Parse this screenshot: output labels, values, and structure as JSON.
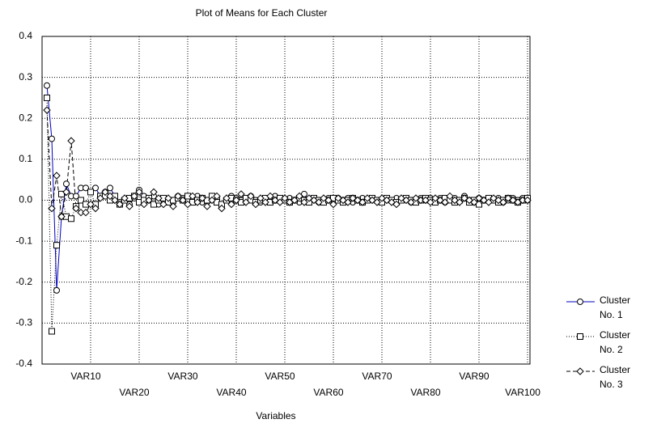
{
  "chart_data": {
    "type": "line",
    "title": "Plot of Means for Each Cluster",
    "x_label": "Variables",
    "categories": [
      null,
      null,
      null,
      null,
      null,
      null,
      null,
      null,
      null,
      "VAR10",
      null,
      null,
      null,
      null,
      null,
      null,
      null,
      null,
      null,
      "VAR20",
      null,
      null,
      null,
      null,
      null,
      null,
      null,
      null,
      null,
      "VAR30",
      null,
      null,
      null,
      null,
      null,
      null,
      null,
      null,
      null,
      "VAR40",
      null,
      null,
      null,
      null,
      null,
      null,
      null,
      null,
      null,
      "VAR50",
      null,
      null,
      null,
      null,
      null,
      null,
      null,
      null,
      null,
      "VAR60",
      null,
      null,
      null,
      null,
      null,
      null,
      null,
      null,
      null,
      "VAR70",
      null,
      null,
      null,
      null,
      null,
      null,
      null,
      null,
      null,
      "VAR80",
      null,
      null,
      null,
      null,
      null,
      null,
      null,
      null,
      null,
      "VAR90",
      null,
      null,
      null,
      null,
      null,
      null,
      null,
      null,
      null,
      "VAR100"
    ],
    "series": [
      {
        "name": "Cluster No. 1",
        "color": "#0000c0",
        "marker": "circle",
        "dash": "solid",
        "values": [
          0.28,
          0.15,
          -0.22,
          -0.04,
          0.04,
          0.01,
          0.01,
          0.03,
          0.03,
          0.02,
          0.03,
          0.01,
          0.02,
          0.03,
          0.01,
          -0.005,
          0.0,
          -0.01,
          0.005,
          0.025,
          0.01,
          0.0,
          0.01,
          -0.01,
          0.005,
          0.0,
          -0.005,
          0.01,
          0.005,
          0.0,
          0.005,
          0.01,
          -0.005,
          0.0,
          0.005,
          0.005,
          -0.01,
          0.0,
          0.01,
          0.005,
          0.0,
          0.005,
          0.01,
          0.0,
          -0.005,
          0.005,
          0.0,
          0.01,
          0.005,
          0.0,
          0.005,
          0.0,
          -0.005,
          0.015,
          0.0,
          0.005,
          -0.005,
          0.0,
          0.005,
          0.0,
          0.005,
          0.0,
          0.005,
          -0.005,
          0.0,
          0.005,
          0.0,
          0.005,
          0.0,
          -0.005,
          0.005,
          0.0,
          0.005,
          0.0,
          0.005,
          -0.005,
          0.0,
          0.005,
          0.0,
          0.005,
          0.0,
          0.005,
          -0.005,
          0.0,
          0.005,
          0.0,
          0.01,
          0.0,
          -0.005,
          0.005,
          0.0,
          0.005,
          0.0,
          0.005,
          -0.005,
          0.0,
          0.005,
          0.0,
          0.005,
          0.0
        ]
      },
      {
        "name": "Cluster No. 2",
        "color": "#000000",
        "marker": "square",
        "dash": "dotted",
        "values": [
          0.25,
          -0.32,
          -0.11,
          0.015,
          -0.04,
          -0.045,
          -0.015,
          0.0,
          -0.01,
          0.02,
          -0.01,
          0.01,
          0.01,
          0.0,
          0.01,
          -0.01,
          0.0,
          0.005,
          0.01,
          -0.005,
          0.0,
          0.005,
          -0.01,
          0.0,
          0.005,
          -0.005,
          0.0,
          0.005,
          0.0,
          0.01,
          -0.005,
          0.0,
          0.005,
          0.0,
          0.01,
          -0.005,
          -0.01,
          0.0,
          0.005,
          0.0,
          -0.005,
          0.005,
          0.0,
          -0.005,
          0.0,
          0.005,
          -0.005,
          0.0,
          0.005,
          0.0,
          -0.005,
          0.0,
          0.005,
          0.0,
          -0.005,
          0.005,
          0.0,
          -0.005,
          0.0,
          0.005,
          0.0,
          -0.005,
          0.0,
          0.005,
          0.0,
          -0.005,
          0.0,
          0.005,
          0.0,
          -0.005,
          0.005,
          0.0,
          -0.005,
          0.0,
          0.005,
          0.0,
          -0.005,
          0.0,
          0.005,
          0.0,
          -0.005,
          0.0,
          0.005,
          0.0,
          -0.005,
          0.0,
          0.005,
          -0.005,
          0.0,
          -0.01,
          0.0,
          0.005,
          0.0,
          -0.005,
          0.0,
          0.005,
          0.0,
          -0.005,
          0.0,
          0.005
        ]
      },
      {
        "name": "Cluster No. 3",
        "color": "#000000",
        "marker": "diamond",
        "dash": "dashed",
        "values": [
          0.22,
          -0.02,
          0.06,
          -0.04,
          0.02,
          0.145,
          -0.02,
          -0.03,
          -0.03,
          -0.01,
          -0.02,
          0.005,
          0.02,
          0.01,
          0.0,
          -0.01,
          0.005,
          -0.015,
          0.01,
          0.02,
          -0.01,
          0.0,
          0.02,
          0.005,
          -0.01,
          0.005,
          -0.015,
          0.01,
          0.0,
          -0.01,
          0.01,
          -0.005,
          0.005,
          -0.015,
          0.0,
          0.01,
          -0.02,
          0.005,
          -0.01,
          0.0,
          0.015,
          -0.005,
          0.01,
          -0.01,
          0.005,
          -0.005,
          0.01,
          0.0,
          -0.005,
          0.005,
          -0.005,
          0.0,
          0.01,
          -0.005,
          0.005,
          0.0,
          -0.005,
          0.005,
          0.0,
          -0.01,
          0.005,
          0.0,
          -0.005,
          0.005,
          0.0,
          -0.005,
          0.005,
          0.0,
          -0.005,
          0.005,
          0.0,
          -0.005,
          -0.01,
          0.005,
          0.0,
          -0.005,
          0.005,
          0.0,
          0.0,
          -0.005,
          0.005,
          0.0,
          -0.005,
          0.01,
          0.0,
          -0.005,
          0.005,
          0.0,
          -0.005,
          0.005,
          0.0,
          -0.005,
          0.005,
          0.0,
          -0.005,
          0.005,
          0.0,
          -0.005,
          0.0,
          0.0
        ]
      }
    ],
    "ylim": [
      -0.4,
      0.4
    ],
    "yticks": [
      -0.4,
      -0.3,
      -0.2,
      -0.1,
      {
        "value": 0,
        "label": "0.0"
      },
      0.1,
      0.2,
      0.3,
      0.4
    ],
    "grid": true,
    "legend": "right"
  }
}
